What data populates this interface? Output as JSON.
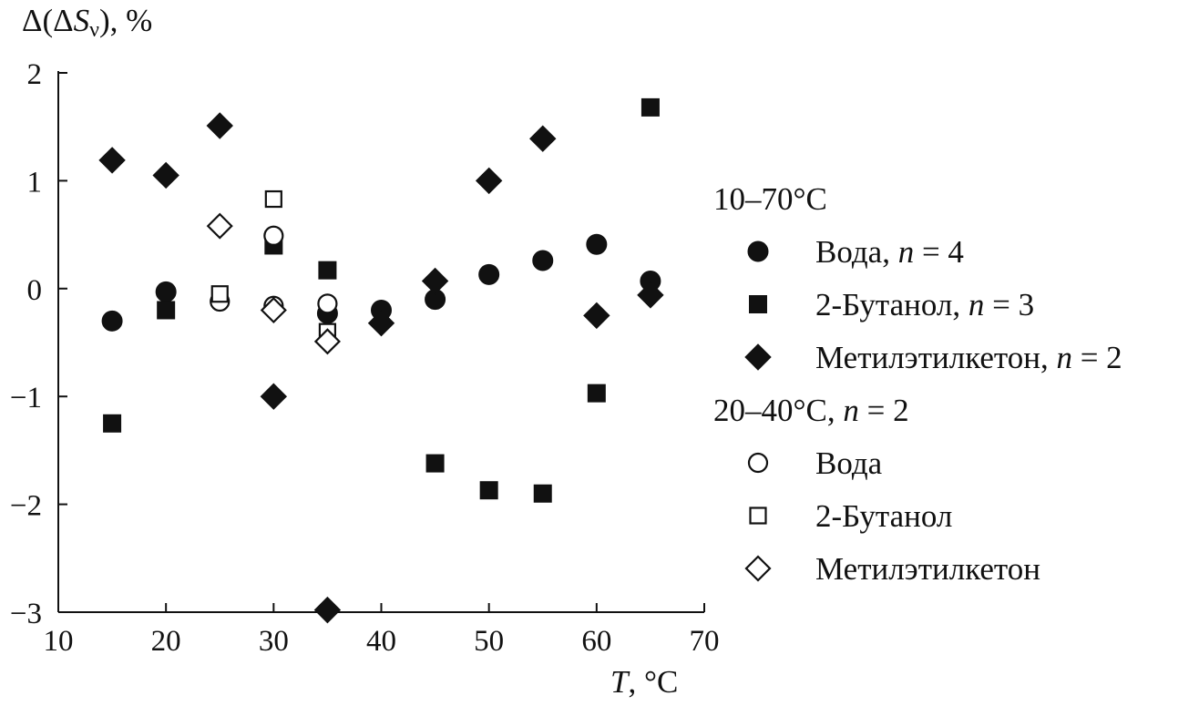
{
  "chart_data": {
    "type": "scatter",
    "ylabel_prefix": "Δ(Δ",
    "ylabel_var": "S",
    "ylabel_sub": "ν",
    "ylabel_suffix": "), %",
    "xlabel_var": "T",
    "xlabel_suffix": ", °C",
    "xlim": [
      10,
      70
    ],
    "ylim": [
      -3,
      2
    ],
    "x_ticks": [
      10,
      20,
      30,
      40,
      50,
      60,
      70
    ],
    "y_ticks": [
      2,
      1,
      0,
      -1,
      -2,
      -3
    ],
    "y_tick_labels": [
      "2",
      "1",
      "0",
      "−1",
      "−2",
      "−3"
    ],
    "grid": false,
    "legend_position": "right",
    "legend_groups": [
      {
        "title": "10–70°C",
        "title_n": "",
        "series_idx": [
          0,
          1,
          2
        ]
      },
      {
        "title": "20–40°C, ",
        "title_n": "n",
        "title_n_value": " = 2",
        "series_idx": [
          3,
          4,
          5
        ]
      }
    ],
    "series": [
      {
        "name": "Вода",
        "n_label": ", n = 4",
        "marker": "circle",
        "filled": true,
        "points": [
          [
            15,
            -0.3
          ],
          [
            20,
            -0.03
          ],
          [
            35,
            -0.23
          ],
          [
            40,
            -0.2
          ],
          [
            45,
            -0.1
          ],
          [
            50,
            0.13
          ],
          [
            55,
            0.26
          ],
          [
            60,
            0.41
          ],
          [
            65,
            0.07
          ]
        ]
      },
      {
        "name": "2-Бутанол",
        "n_label": ", n = 3",
        "marker": "square",
        "filled": true,
        "points": [
          [
            15,
            -1.25
          ],
          [
            20,
            -0.2
          ],
          [
            30,
            0.4
          ],
          [
            35,
            0.17
          ],
          [
            45,
            -1.62
          ],
          [
            50,
            -1.87
          ],
          [
            55,
            -1.9
          ],
          [
            60,
            -0.97
          ],
          [
            65,
            1.68
          ]
        ]
      },
      {
        "name": "Метилэтилкетон",
        "n_label": ", n = 2",
        "marker": "diamond",
        "filled": true,
        "points": [
          [
            15,
            1.19
          ],
          [
            20,
            1.05
          ],
          [
            25,
            1.51
          ],
          [
            30,
            -1.0
          ],
          [
            35,
            -2.98
          ],
          [
            40,
            -0.32
          ],
          [
            45,
            0.07
          ],
          [
            50,
            1.0
          ],
          [
            55,
            1.39
          ],
          [
            60,
            -0.25
          ],
          [
            65,
            -0.06
          ]
        ]
      },
      {
        "name": "Вода",
        "n_label": "",
        "marker": "circle",
        "filled": false,
        "points": [
          [
            25,
            -0.12
          ],
          [
            30,
            0.49
          ],
          [
            30,
            -0.16
          ],
          [
            35,
            -0.14
          ]
        ]
      },
      {
        "name": "2-Бутанол",
        "n_label": "",
        "marker": "square",
        "filled": false,
        "points": [
          [
            25,
            -0.05
          ],
          [
            30,
            0.83
          ],
          [
            35,
            -0.4
          ]
        ]
      },
      {
        "name": "Метилэтилкетон",
        "n_label": "",
        "marker": "diamond",
        "filled": false,
        "points": [
          [
            25,
            0.58
          ],
          [
            30,
            -0.2
          ],
          [
            35,
            -0.49
          ]
        ]
      }
    ]
  }
}
